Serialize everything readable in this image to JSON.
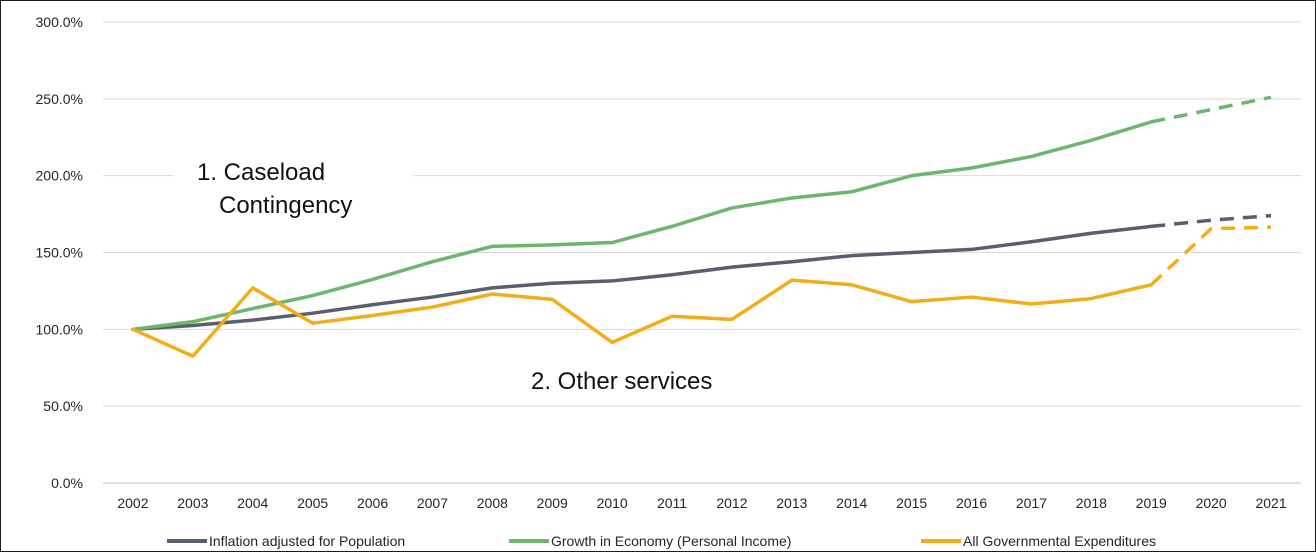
{
  "chart_data": {
    "type": "line",
    "categories": [
      "2002",
      "2003",
      "2004",
      "2005",
      "2006",
      "2007",
      "2008",
      "2009",
      "2010",
      "2011",
      "2012",
      "2013",
      "2014",
      "2015",
      "2016",
      "2017",
      "2018",
      "2019",
      "2020",
      "2021"
    ],
    "ylim": [
      0,
      300
    ],
    "yticks": [
      "0.0%",
      "50.0%",
      "100.0%",
      "150.0%",
      "200.0%",
      "250.0%",
      "300.0%"
    ],
    "ytick_values": [
      0,
      50,
      100,
      150,
      200,
      250,
      300
    ],
    "grid": true,
    "legend_position": "bottom",
    "projection_starts_after": "2019",
    "series": [
      {
        "name": "Inflation adjusted for Population",
        "color": "#595f6e",
        "values": [
          100,
          102.5,
          106,
          110.5,
          116,
          121,
          127,
          130,
          131.5,
          135.5,
          140.5,
          144,
          148,
          150,
          152,
          157,
          162.5,
          167,
          171,
          174
        ]
      },
      {
        "name": "Growth in Economy (Personal Income)",
        "color": "#6db66d",
        "values": [
          100,
          105,
          113.5,
          122,
          132.5,
          144,
          154,
          155,
          156.5,
          167,
          179,
          185.5,
          189.5,
          200,
          205,
          212.5,
          223,
          235,
          243,
          251
        ]
      },
      {
        "name": "All Governmental Expenditures",
        "color": "#f2ad1a",
        "values": [
          100,
          82.5,
          127,
          104,
          109,
          114.5,
          123,
          119.5,
          91.5,
          108.5,
          106.5,
          132,
          129,
          118,
          121,
          116.5,
          120,
          129,
          165.5,
          166.5
        ]
      }
    ],
    "annotations": [
      {
        "id": "caseload",
        "line1": "1.   Caseload",
        "line2": "Contingency"
      },
      {
        "id": "other",
        "text": "2.  Other services"
      }
    ]
  }
}
